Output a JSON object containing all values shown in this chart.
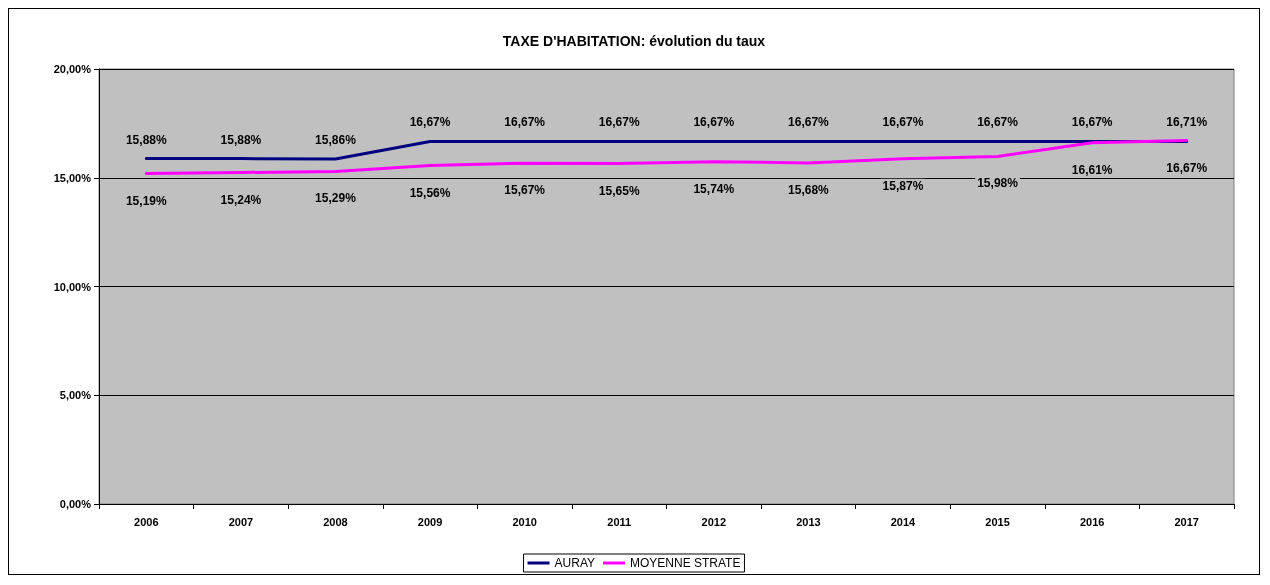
{
  "chart_data": {
    "type": "line",
    "title": "TAXE D'HABITATION: évolution du taux",
    "categories": [
      "2006",
      "2007",
      "2008",
      "2009",
      "2010",
      "2011",
      "2012",
      "2013",
      "2014",
      "2015",
      "2016",
      "2017"
    ],
    "series": [
      {
        "name": "AURAY",
        "color": "#000080",
        "values": [
          15.88,
          15.88,
          15.86,
          16.67,
          16.67,
          16.67,
          16.67,
          16.67,
          16.67,
          16.67,
          16.67,
          16.67
        ],
        "value_labels": [
          "15,88%",
          "15,88%",
          "15,86%",
          "16,67%",
          "16,67%",
          "16,67%",
          "16,67%",
          "16,67%",
          "16,67%",
          "16,67%",
          "16,67%",
          "16,67%"
        ]
      },
      {
        "name": "MOYENNE STRATE",
        "color": "#ff00ff",
        "values": [
          15.19,
          15.24,
          15.29,
          15.56,
          15.67,
          15.65,
          15.74,
          15.68,
          15.87,
          15.98,
          16.61,
          16.71
        ],
        "value_labels": [
          "15,19%",
          "15,24%",
          "15,29%",
          "15,56%",
          "15,67%",
          "15,65%",
          "15,74%",
          "15,68%",
          "15,87%",
          "15,98%",
          "16,61%",
          "16,71%"
        ]
      }
    ],
    "ylim": [
      0,
      20
    ],
    "yticks": [
      {
        "value": 0,
        "label": "0,00%"
      },
      {
        "value": 5,
        "label": "5,00%"
      },
      {
        "value": 10,
        "label": "10,00%"
      },
      {
        "value": 15,
        "label": "15,00%"
      },
      {
        "value": 20,
        "label": "20,00%"
      }
    ],
    "grid": "y",
    "legend": "bottom",
    "marker": "none",
    "line_style": "solid"
  }
}
